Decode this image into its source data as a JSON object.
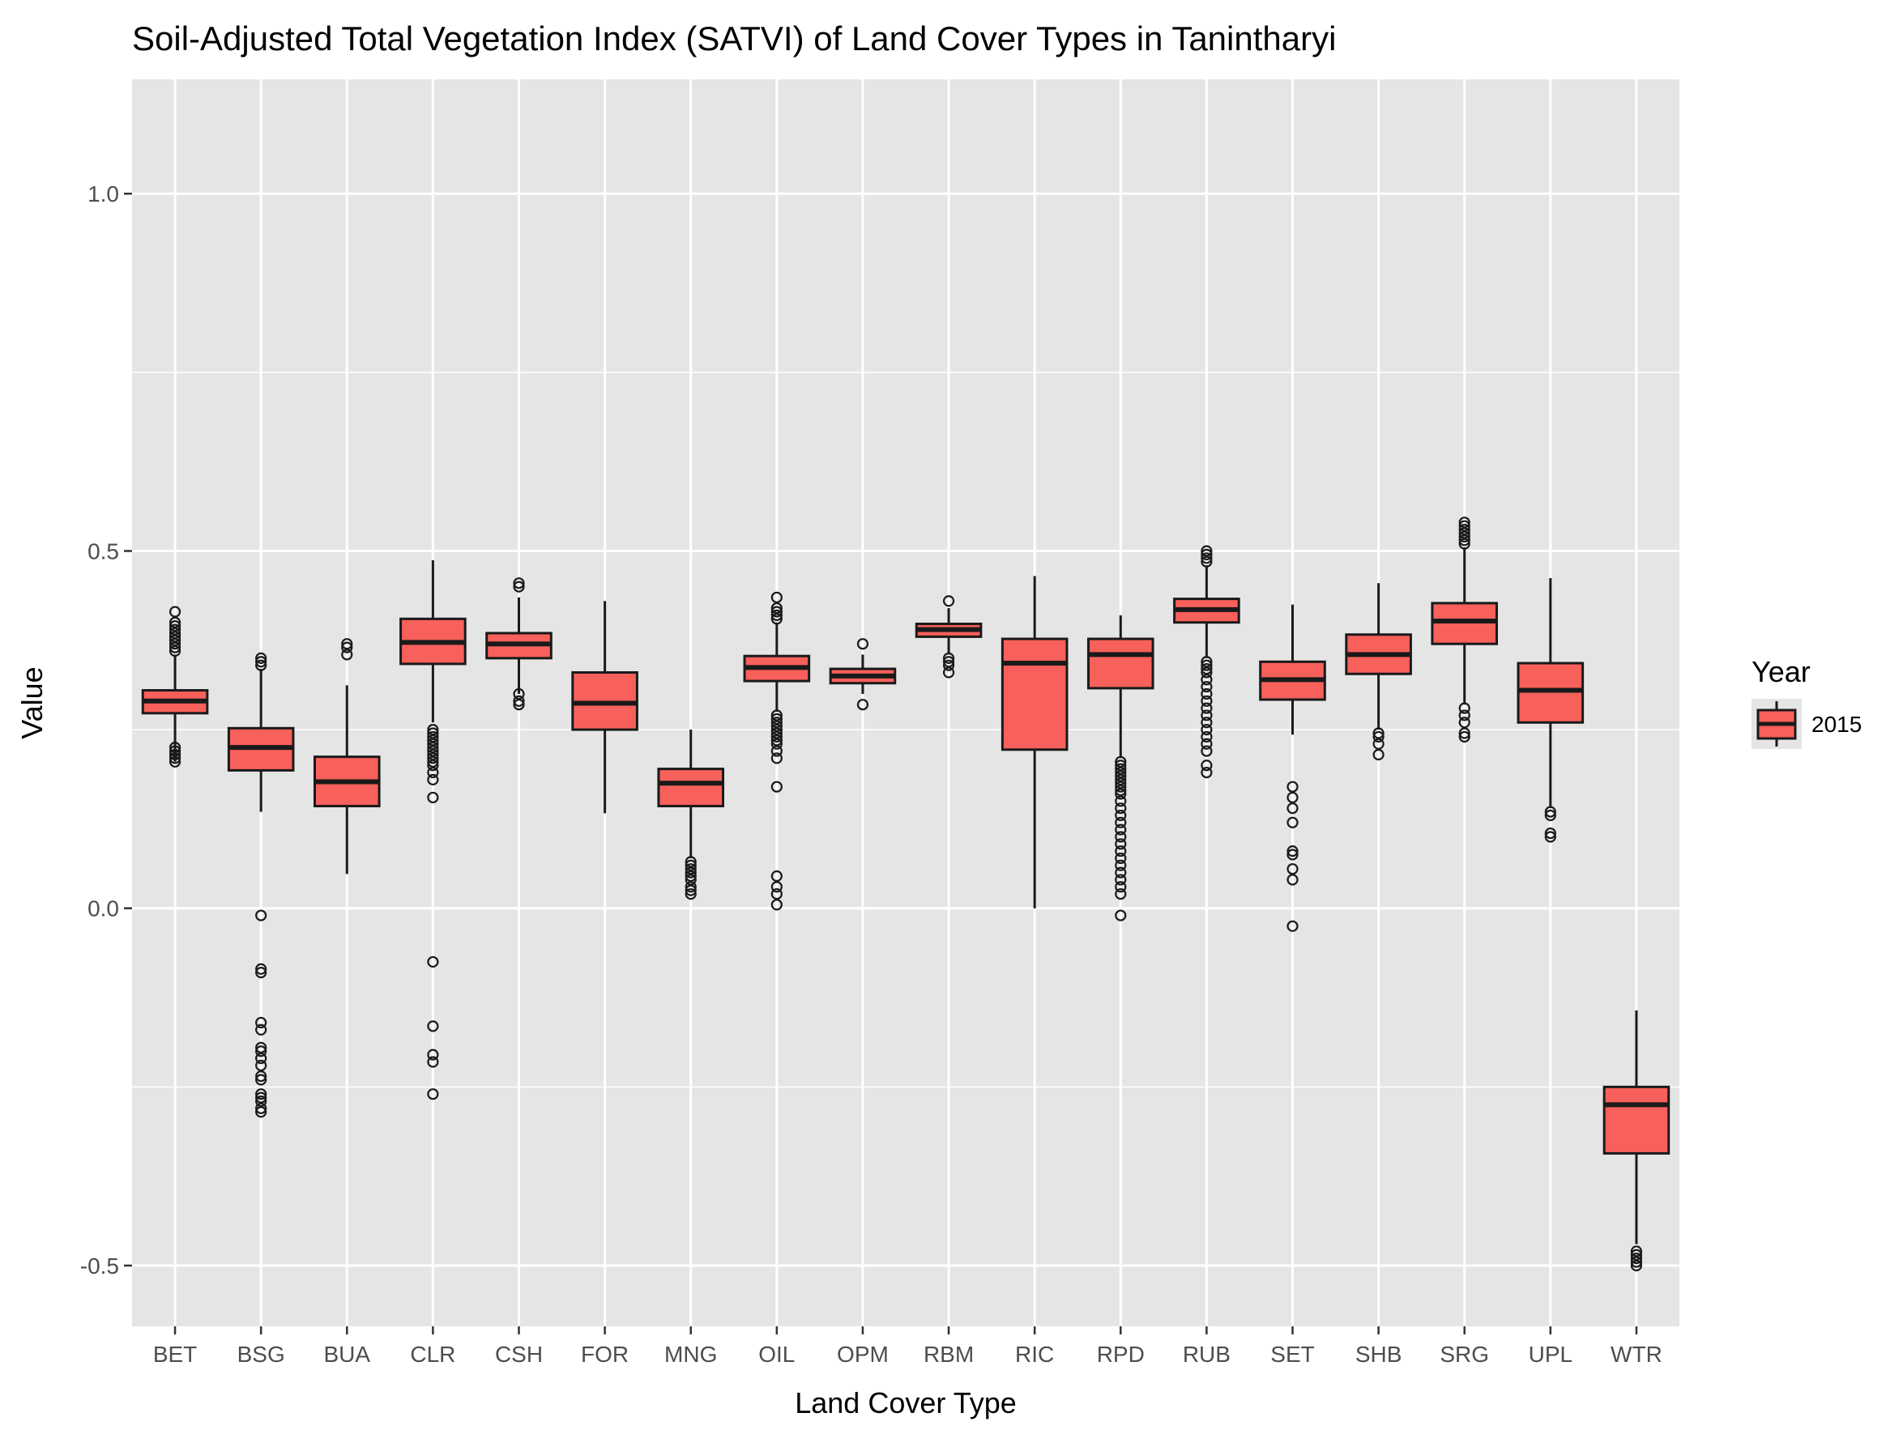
{
  "chart_data": {
    "type": "boxplot",
    "title": "Soil-Adjusted Total Vegetation Index (SATVI) of Land Cover Types in Tanintharyi",
    "xlabel": "Land Cover Type",
    "ylabel": "Value",
    "ylim": [
      -0.585,
      1.16
    ],
    "yticks": [
      {
        "value": -0.5,
        "label": "-0.5"
      },
      {
        "value": 0.0,
        "label": "0.0"
      },
      {
        "value": 0.5,
        "label": "0.5"
      },
      {
        "value": 1.0,
        "label": "1.0"
      }
    ],
    "grid": true,
    "legend": {
      "title": "Year",
      "position": "right",
      "entries": [
        {
          "label": "2015",
          "color": "#f8605b"
        }
      ]
    },
    "colors": {
      "box_fill": "#f8605b",
      "panel_bg": "#e5e5e5",
      "grid": "#ffffff",
      "line": "#1a1a1a"
    },
    "categories": [
      "BET",
      "BSG",
      "BUA",
      "CLR",
      "CSH",
      "FOR",
      "MNG",
      "OIL",
      "OPM",
      "RBM",
      "RIC",
      "RPD",
      "RUB",
      "SET",
      "SHB",
      "SRG",
      "UPL",
      "WTR"
    ],
    "series": [
      {
        "boxes": [
          {
            "low": 0.205,
            "q1": 0.273,
            "median": 0.29,
            "q3": 0.305,
            "high": 0.355,
            "outliers": [
              0.205,
              0.21,
              0.215,
              0.22,
              0.225,
              0.36,
              0.365,
              0.37,
              0.375,
              0.38,
              0.385,
              0.39,
              0.395,
              0.4,
              0.415
            ]
          },
          {
            "low": 0.135,
            "q1": 0.193,
            "median": 0.225,
            "q3": 0.252,
            "high": 0.335,
            "outliers": [
              0.34,
              0.345,
              0.35,
              -0.01,
              -0.085,
              -0.09,
              -0.16,
              -0.17,
              -0.195,
              -0.2,
              -0.21,
              -0.22,
              -0.235,
              -0.24,
              -0.26,
              -0.265,
              -0.27,
              -0.28,
              -0.285
            ]
          },
          {
            "low": 0.048,
            "q1": 0.143,
            "median": 0.177,
            "q3": 0.212,
            "high": 0.312,
            "outliers": [
              0.355,
              0.365,
              0.37
            ]
          },
          {
            "low": 0.26,
            "q1": 0.342,
            "median": 0.372,
            "q3": 0.405,
            "high": 0.487,
            "outliers": [
              0.25,
              0.245,
              0.24,
              0.235,
              0.23,
              0.225,
              0.22,
              0.215,
              0.21,
              0.205,
              0.2,
              0.19,
              0.18,
              0.155,
              -0.075,
              -0.165,
              -0.205,
              -0.215,
              -0.26
            ]
          },
          {
            "low": 0.3,
            "q1": 0.35,
            "median": 0.37,
            "q3": 0.385,
            "high": 0.435,
            "outliers": [
              0.45,
              0.455,
              0.3,
              0.29,
              0.285
            ]
          },
          {
            "low": 0.133,
            "q1": 0.25,
            "median": 0.287,
            "q3": 0.33,
            "high": 0.43,
            "outliers": []
          },
          {
            "low": 0.07,
            "q1": 0.143,
            "median": 0.175,
            "q3": 0.195,
            "high": 0.25,
            "outliers": [
              0.065,
              0.06,
              0.055,
              0.05,
              0.045,
              0.04,
              0.03,
              0.025,
              0.02
            ]
          },
          {
            "low": 0.275,
            "q1": 0.318,
            "median": 0.337,
            "q3": 0.353,
            "high": 0.4,
            "outliers": [
              0.405,
              0.41,
              0.415,
              0.42,
              0.435,
              0.27,
              0.265,
              0.26,
              0.255,
              0.25,
              0.245,
              0.24,
              0.235,
              0.23,
              0.22,
              0.21,
              0.17,
              0.045,
              0.03,
              0.02,
              0.005
            ]
          },
          {
            "low": 0.3,
            "q1": 0.315,
            "median": 0.325,
            "q3": 0.335,
            "high": 0.355,
            "outliers": [
              0.37,
              0.285
            ]
          },
          {
            "low": 0.355,
            "q1": 0.38,
            "median": 0.39,
            "q3": 0.398,
            "high": 0.42,
            "outliers": [
              0.43,
              0.35,
              0.345,
              0.34,
              0.33
            ]
          },
          {
            "low": 0.0,
            "q1": 0.222,
            "median": 0.343,
            "q3": 0.377,
            "high": 0.465,
            "outliers": []
          },
          {
            "low": 0.21,
            "q1": 0.308,
            "median": 0.355,
            "q3": 0.377,
            "high": 0.41,
            "outliers": [
              0.205,
              0.2,
              0.195,
              0.19,
              0.185,
              0.18,
              0.175,
              0.17,
              0.165,
              0.16,
              0.15,
              0.14,
              0.13,
              0.12,
              0.11,
              0.1,
              0.09,
              0.08,
              0.07,
              0.06,
              0.05,
              0.04,
              0.03,
              0.02,
              -0.01
            ]
          },
          {
            "low": 0.35,
            "q1": 0.4,
            "median": 0.418,
            "q3": 0.433,
            "high": 0.48,
            "outliers": [
              0.485,
              0.49,
              0.495,
              0.5,
              0.345,
              0.34,
              0.335,
              0.33,
              0.32,
              0.31,
              0.3,
              0.29,
              0.28,
              0.27,
              0.26,
              0.25,
              0.24,
              0.23,
              0.22,
              0.2,
              0.19
            ]
          },
          {
            "low": 0.243,
            "q1": 0.292,
            "median": 0.32,
            "q3": 0.345,
            "high": 0.425,
            "outliers": [
              0.17,
              0.155,
              0.14,
              0.12,
              0.08,
              0.075,
              0.055,
              0.04,
              -0.025
            ]
          },
          {
            "low": 0.25,
            "q1": 0.328,
            "median": 0.355,
            "q3": 0.383,
            "high": 0.455,
            "outliers": [
              0.245,
              0.24,
              0.23,
              0.215
            ]
          },
          {
            "low": 0.285,
            "q1": 0.37,
            "median": 0.402,
            "q3": 0.427,
            "high": 0.505,
            "outliers": [
              0.51,
              0.515,
              0.52,
              0.525,
              0.53,
              0.535,
              0.54,
              0.28,
              0.27,
              0.26,
              0.245,
              0.24
            ]
          },
          {
            "low": 0.14,
            "q1": 0.26,
            "median": 0.305,
            "q3": 0.343,
            "high": 0.462,
            "outliers": [
              0.135,
              0.13,
              0.105,
              0.1
            ]
          },
          {
            "low": -0.47,
            "q1": -0.343,
            "median": -0.275,
            "q3": -0.25,
            "high": -0.143,
            "outliers": [
              -0.48,
              -0.485,
              -0.49,
              -0.495,
              -0.5
            ]
          }
        ]
      }
    ]
  }
}
